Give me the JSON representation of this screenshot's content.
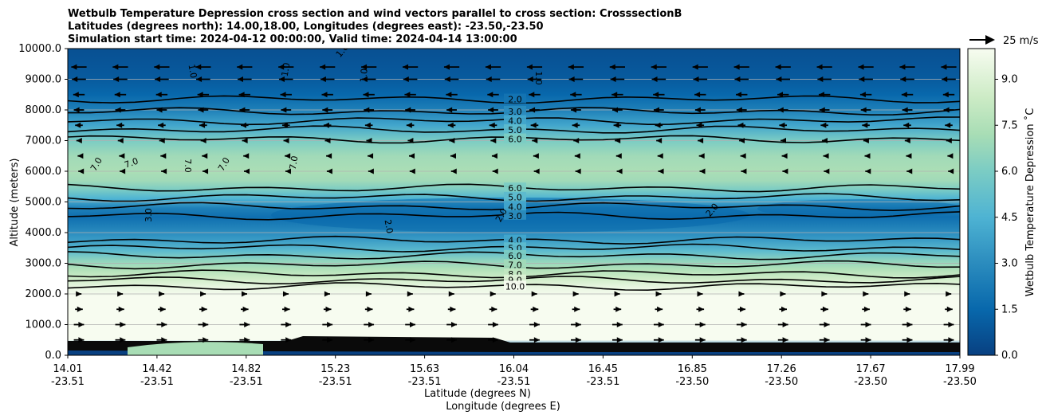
{
  "chart_data": {
    "type": "contour",
    "title_lines": [
      "Wetbulb Temperature Depression cross section and wind vectors parallel to cross section: CrosssectionB",
      "Latitudes (degrees north): 14.00,18.00, Longitudes (degrees east): -23.50,-23.50",
      "Simulation start time: 2024-04-12 00:00:00, Valid time: 2024-04-14 13:00:00"
    ],
    "ylabel": "Altitude (meters)",
    "xlabel_lat": "Latitude (degrees N)",
    "xlabel_lon": "Longitude (degrees E)",
    "ylim": [
      0,
      10000
    ],
    "y_ticks": [
      "0.0",
      "1000.0",
      "2000.0",
      "3000.0",
      "4000.0",
      "5000.0",
      "6000.0",
      "7000.0",
      "8000.0",
      "9000.0",
      "10000.0"
    ],
    "y_tick_values": [
      0,
      1000,
      2000,
      3000,
      4000,
      5000,
      6000,
      7000,
      8000,
      9000,
      10000
    ],
    "x_ticks": [
      {
        "lat": "14.01",
        "lon": "-23.51"
      },
      {
        "lat": "14.42",
        "lon": "-23.51"
      },
      {
        "lat": "14.82",
        "lon": "-23.51"
      },
      {
        "lat": "15.23",
        "lon": "-23.51"
      },
      {
        "lat": "15.63",
        "lon": "-23.51"
      },
      {
        "lat": "16.04",
        "lon": "-23.51"
      },
      {
        "lat": "16.45",
        "lon": "-23.51"
      },
      {
        "lat": "16.85",
        "lon": "-23.50"
      },
      {
        "lat": "17.26",
        "lon": "-23.50"
      },
      {
        "lat": "17.67",
        "lon": "-23.50"
      },
      {
        "lat": "17.99",
        "lon": "-23.50"
      }
    ],
    "colorbar": {
      "label": "Wetbulb Temperature Depression ˚C",
      "range": [
        0,
        10
      ],
      "ticks": [
        "0.0",
        "1.5",
        "3.0",
        "4.5",
        "6.0",
        "7.5",
        "9.0"
      ],
      "tick_values": [
        0,
        1.5,
        3,
        4.5,
        6,
        7.5,
        9
      ]
    },
    "quiver_key": "25 m/s",
    "profile": {
      "altitude": [
        0,
        300,
        500,
        1000,
        1500,
        1900,
        2200,
        2500,
        2800,
        3100,
        3400,
        3800,
        4200,
        4500,
        4800,
        5100,
        5400,
        5700,
        6000,
        6500,
        7000,
        7500,
        8000,
        8500,
        9000,
        9500,
        10000
      ],
      "depression": [
        0.3,
        2.0,
        10.0,
        10.0,
        10.0,
        10.0,
        9.5,
        8.5,
        7.5,
        6.5,
        5.0,
        3.5,
        2.5,
        1.8,
        2.5,
        4.5,
        6.0,
        7.0,
        7.3,
        7.0,
        6.0,
        4.0,
        2.5,
        1.5,
        1.0,
        0.8,
        0.6
      ]
    },
    "contours": [
      {
        "label": "2.0",
        "altitude": 8350
      },
      {
        "label": "3.0",
        "altitude": 7950
      },
      {
        "label": "4.0",
        "altitude": 7650
      },
      {
        "label": "5.0",
        "altitude": 7350
      },
      {
        "label": "6.0",
        "altitude": 7050
      },
      {
        "label": "6.0",
        "altitude": 5450
      },
      {
        "label": "5.0",
        "altitude": 5150
      },
      {
        "label": "4.0",
        "altitude": 4850
      },
      {
        "label": "3.0",
        "altitude": 4550
      },
      {
        "label": "4.0",
        "altitude": 3750
      },
      {
        "label": "5.0",
        "altitude": 3500
      },
      {
        "label": "6.0",
        "altitude": 3250
      },
      {
        "label": "7.0",
        "altitude": 2950
      },
      {
        "label": "8.0",
        "altitude": 2650
      },
      {
        "label": "9.0",
        "altitude": 2450
      },
      {
        "label": "10.0",
        "altitude": 2250
      }
    ],
    "inline_labels": [
      "7.0",
      "7.0",
      "7.0",
      "7.0",
      "7.0",
      "3.0",
      "2.0",
      "2.0",
      "2.0",
      "1.0",
      "1.0",
      "1.0",
      "1.0",
      "1.0"
    ],
    "wind": {
      "rows": [
        {
          "altitude": 9400,
          "u": -12
        },
        {
          "altitude": 9000,
          "u": -11
        },
        {
          "altitude": 8500,
          "u": -9
        },
        {
          "altitude": 8000,
          "u": -8
        },
        {
          "altitude": 7500,
          "u": -6
        },
        {
          "altitude": 7000,
          "u": -4
        },
        {
          "altitude": 6500,
          "u": -2
        },
        {
          "altitude": 6000,
          "u": -1
        },
        {
          "altitude": 2000,
          "u": 4
        },
        {
          "altitude": 1500,
          "u": 6
        },
        {
          "altitude": 1000,
          "u": 8
        },
        {
          "altitude": 500,
          "u": 8
        }
      ],
      "columns": 22
    }
  }
}
